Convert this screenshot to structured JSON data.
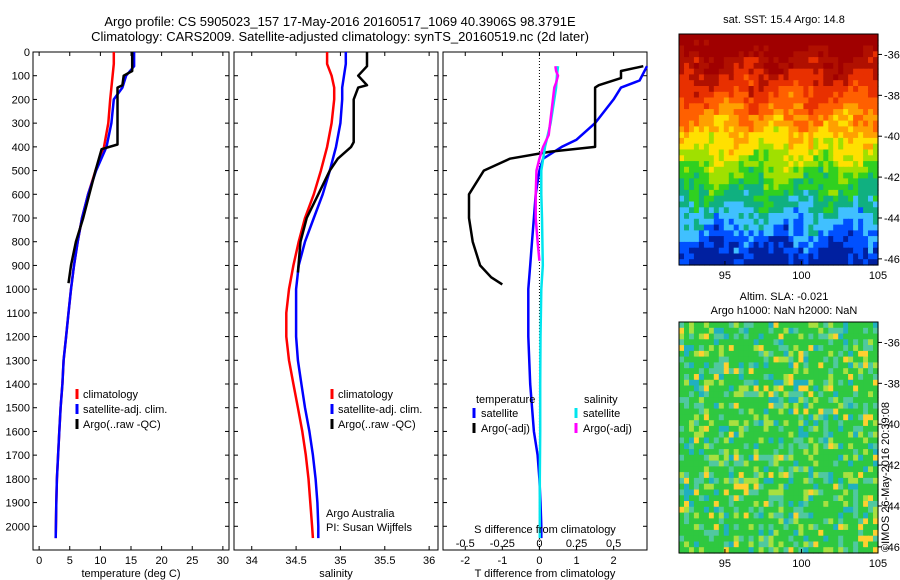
{
  "title_line1": "Argo profile: CS 5905023_157 17-May-2016 20160517_1069 40.3906S 98.3791E",
  "title_line2": "Climatology: CARS2009. Satellite-adjusted climatology: synTS_20160519.nc (2d later)",
  "colors": {
    "climatology": "#ff0000",
    "satellite": "#0000ff",
    "argo": "#000000",
    "sal_satellite": "#00e5ee",
    "sal_argo": "#ff00ff"
  },
  "chart_data": [
    {
      "type": "line",
      "name": "temperature",
      "xlabel": "temperature (deg C)",
      "ylabel": "",
      "xlim": [
        -1,
        31
      ],
      "ylim": [
        2100,
        0
      ],
      "xticks": [
        0,
        5,
        10,
        15,
        20,
        25,
        30
      ],
      "yticks": [
        0,
        100,
        200,
        300,
        400,
        500,
        600,
        700,
        800,
        900,
        1000,
        1100,
        1200,
        1300,
        1400,
        1500,
        1600,
        1700,
        1800,
        1900,
        2000
      ],
      "legend": [
        "climatology",
        "satellite-adj. clim.",
        "Argo(..raw -QC)"
      ],
      "legend_position": "lower-right",
      "series": [
        {
          "name": "climatology",
          "color": "climatology",
          "x": [
            12.2,
            12.2,
            12,
            11.8,
            11.6,
            11.3,
            10.6,
            9.2,
            8,
            7,
            6.3,
            5.7,
            5.2,
            4.8,
            4.4,
            4,
            3.8,
            3.5,
            3.3,
            3.1,
            2.9,
            2.8,
            2.7
          ],
          "y": [
            0,
            50,
            100,
            150,
            200,
            300,
            400,
            500,
            600,
            700,
            800,
            900,
            1000,
            1100,
            1200,
            1300,
            1400,
            1500,
            1600,
            1700,
            1800,
            1900,
            2050
          ]
        },
        {
          "name": "satellite-adj. clim.",
          "color": "satellite",
          "x": [
            15.5,
            15.5,
            14.2,
            13.6,
            12.2,
            11.8,
            11,
            9.3,
            8,
            7,
            6.3,
            5.7,
            5.2,
            4.8,
            4.4,
            4,
            3.8,
            3.5,
            3.3,
            3.1,
            2.9,
            2.8,
            2.7
          ],
          "y": [
            0,
            60,
            100,
            150,
            200,
            300,
            400,
            500,
            600,
            700,
            800,
            900,
            1000,
            1100,
            1200,
            1300,
            1400,
            1500,
            1600,
            1700,
            1800,
            1900,
            2050
          ]
        },
        {
          "name": "Argo(..raw -QC)",
          "color": "argo",
          "x": [
            15.2,
            15.2,
            13.8,
            13.6,
            12.8,
            12.8,
            12.8,
            10.2,
            9.2,
            8.2,
            7.2,
            6,
            5.2,
            4.8
          ],
          "y": [
            0,
            80,
            100,
            140,
            150,
            200,
            390,
            410,
            500,
            600,
            700,
            800,
            900,
            975
          ]
        }
      ]
    },
    {
      "type": "line",
      "name": "salinity",
      "xlabel": "salinity",
      "ylabel": "",
      "xlim": [
        33.8,
        36.1
      ],
      "ylim": [
        2100,
        0
      ],
      "xticks": [
        34,
        34.5,
        35,
        35.5,
        36
      ],
      "legend": [
        "climatology",
        "satellite-adj. clim.",
        "Argo(..raw -QC)"
      ],
      "legend_position": "lower-right",
      "annotations": [
        "Argo Australia",
        "PI: Susan Wijffels"
      ],
      "series": [
        {
          "name": "climatology",
          "color": "climatology",
          "x": [
            34.85,
            34.85,
            34.9,
            34.93,
            34.93,
            34.9,
            34.85,
            34.78,
            34.7,
            34.6,
            34.53,
            34.47,
            34.42,
            34.39,
            34.39,
            34.42,
            34.47,
            34.52,
            34.57,
            34.61,
            34.64,
            34.66,
            34.68,
            34.69
          ],
          "y": [
            0,
            50,
            100,
            150,
            200,
            300,
            400,
            500,
            600,
            700,
            800,
            900,
            1000,
            1100,
            1200,
            1300,
            1400,
            1500,
            1600,
            1700,
            1800,
            1900,
            2000,
            2050
          ]
        },
        {
          "name": "satellite-adj. clim.",
          "color": "satellite",
          "x": [
            35.06,
            35.06,
            35.04,
            35.02,
            35.02,
            35,
            34.95,
            34.88,
            34.8,
            34.7,
            34.6,
            34.53,
            34.5,
            34.5,
            34.5,
            34.52,
            34.56,
            34.6,
            34.65,
            34.69,
            34.72,
            34.74,
            34.75,
            34.75
          ],
          "y": [
            0,
            50,
            100,
            150,
            200,
            300,
            400,
            500,
            600,
            700,
            800,
            900,
            1000,
            1100,
            1200,
            1300,
            1400,
            1500,
            1600,
            1700,
            1800,
            1900,
            2000,
            2050
          ]
        },
        {
          "name": "Argo(..raw -QC)",
          "color": "argo",
          "x": [
            35.3,
            35.3,
            35.2,
            35.3,
            35.2,
            35.15,
            35.15,
            35.12,
            34.97,
            34.88,
            34.75,
            34.62,
            34.55,
            34.52
          ],
          "y": [
            0,
            60,
            100,
            140,
            150,
            200,
            380,
            400,
            450,
            500,
            600,
            700,
            800,
            930
          ]
        }
      ]
    },
    {
      "type": "line",
      "name": "differences",
      "xlabel": "T difference from climatology",
      "x2label": "S difference from climatology",
      "xlim": [
        -2.6,
        2.9
      ],
      "x2lim": [
        -0.65,
        0.725
      ],
      "ylim": [
        2100,
        0
      ],
      "xticks": [
        -2,
        -1,
        0,
        1,
        2
      ],
      "x2ticks": [
        -0.5,
        -0.25,
        0,
        0.25,
        0.5
      ],
      "x2ticklabels": [
        "-0.5",
        "-0.25",
        "0",
        "0.25",
        "0.5"
      ],
      "legend_temperature_title": "temperature",
      "legend_salinity_title": "salinity",
      "legend_temperature": [
        "satellite",
        "Argo(-adj)"
      ],
      "legend_salinity": [
        "satellite",
        "Argo(-adj)"
      ],
      "series": [
        {
          "name": "T satellite",
          "color": "satellite",
          "x": [
            2.9,
            2.7,
            2.2,
            2,
            1.5,
            1,
            0.6,
            0.3,
            0.1,
            0,
            -0.1,
            -0.15,
            -0.2,
            -0.25,
            -0.3,
            -0.3,
            -0.25,
            -0.15,
            -0.05,
            0,
            0.03,
            0.05,
            0.05
          ],
          "y": [
            60,
            120,
            150,
            200,
            300,
            370,
            400,
            430,
            450,
            500,
            600,
            700,
            800,
            900,
            1000,
            1200,
            1400,
            1600,
            1700,
            1800,
            1900,
            2000,
            2050
          ]
        },
        {
          "name": "T Argo",
          "color": "argo",
          "x": [
            2.8,
            2.2,
            2.2,
            1.8,
            1.6,
            1.5,
            1.5,
            0.3,
            -0.8,
            -1.5,
            -1.9,
            -1.9,
            -1.8,
            -1.6,
            -1.3,
            -1
          ],
          "y": [
            60,
            80,
            110,
            130,
            140,
            150,
            400,
            420,
            450,
            500,
            600,
            700,
            800,
            900,
            950,
            980
          ]
        },
        {
          "name": "S satellite",
          "color": "sal_satellite",
          "x": [
            0.5,
            0.47,
            0.45,
            0.4,
            0.3,
            0.15,
            0.05,
            0.05,
            0.07,
            0.08,
            0.09,
            0.05,
            0.03,
            0.02,
            0.02,
            0.01,
            0.01
          ],
          "y": [
            60,
            100,
            150,
            200,
            300,
            400,
            500,
            600,
            700,
            800,
            900,
            1000,
            1200,
            1400,
            1600,
            1800,
            2050
          ]
        },
        {
          "name": "S Argo",
          "color": "sal_argo",
          "x": [
            0.43,
            0.45,
            0.5,
            0.45,
            0.4,
            0.25,
            0.1,
            0,
            -0.08,
            -0.1,
            -0.1,
            -0.05,
            0
          ],
          "y": [
            60,
            80,
            100,
            130,
            150,
            350,
            400,
            450,
            500,
            600,
            700,
            800,
            880
          ]
        }
      ]
    },
    {
      "type": "heatmap",
      "name": "sst-map",
      "title": "sat. SST: 15.4 Argo: 14.8",
      "xlim": [
        92,
        105
      ],
      "ylim": [
        -46.3,
        -35
      ],
      "xticks": [
        95,
        100,
        105
      ],
      "yticks": [
        -36,
        -38,
        -40,
        -42,
        -44,
        -46
      ],
      "color_bands": [
        "#a00000",
        "#b01000",
        "#e83000",
        "#ff6000",
        "#ffa000",
        "#ffe000",
        "#a0e000",
        "#30d020",
        "#10b080",
        "#40c0ff",
        "#0050ff",
        "#0020a0"
      ]
    },
    {
      "type": "heatmap",
      "name": "sla-map",
      "title_line1": "Altim. SLA: -0.021",
      "title_line2": "Argo h1000: NaN h2000: NaN",
      "xlim": [
        92,
        105
      ],
      "ylim": [
        -46.3,
        -35
      ],
      "xticks": [
        95,
        100,
        105
      ],
      "yticks": [
        -36,
        -38,
        -40,
        -42,
        -44,
        -46
      ],
      "base_color": "#2fc840"
    }
  ],
  "stamp": "©IMOS 26-May-2016 20:39:08"
}
